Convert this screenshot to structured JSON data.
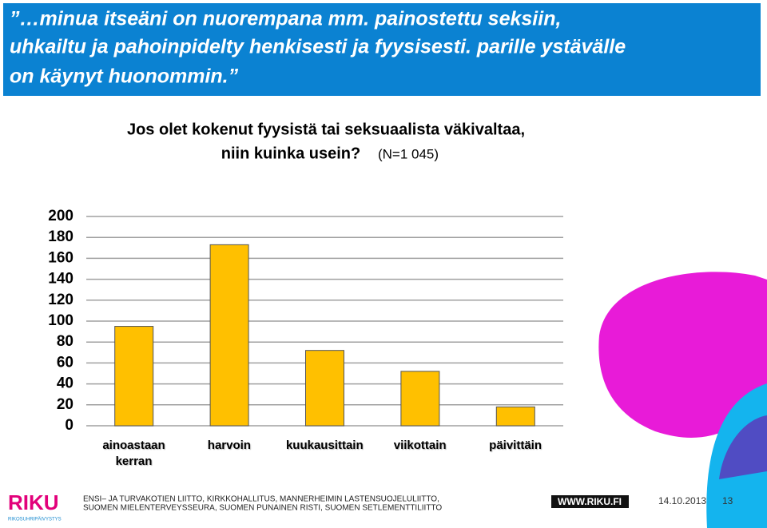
{
  "slide": {
    "quote": [
      "”…minua itseäni on nuorempana mm. painostettu seksiin,",
      "uhkailtu ja pahoinpidelty henkisesti ja fyysisesti. parille ystävälle",
      "on käynyt huonommin.”"
    ],
    "footer": {
      "logo": "RIKU",
      "logo_subtitle": "RIKOSUHRIPÄIVYSTYS",
      "organizations": [
        "ENSI– JA TURVAKOTIEN LIITTO, KIRKKOHALLITUS, MANNERHEIMIN LASTENSUOJELULIITTO,",
        "SUOMEN MIELENTERVEYSSEURA, SUOMEN PUNAINEN RISTI, SUOMEN SETLEMENTTILIITTO"
      ],
      "website": "WWW.RIKU.FI",
      "date": "14.10.2013",
      "page": "13"
    }
  },
  "chart_data": {
    "type": "bar",
    "title": [
      "Jos olet kokenut fyysistä tai seksuaalista väkivaltaa,",
      "niin kuinka usein?"
    ],
    "subtitle": "(N=1 045)",
    "categories": [
      "ainoastaan kerran",
      "harvoin",
      "kuukausittain",
      "viikottain",
      "päivittäin"
    ],
    "values": [
      95,
      173,
      72,
      52,
      18
    ],
    "color": "#ffc000",
    "ylim": [
      0,
      200
    ],
    "yticks": [
      0,
      20,
      40,
      60,
      80,
      100,
      120,
      140,
      160,
      180,
      200
    ],
    "grid": true
  }
}
